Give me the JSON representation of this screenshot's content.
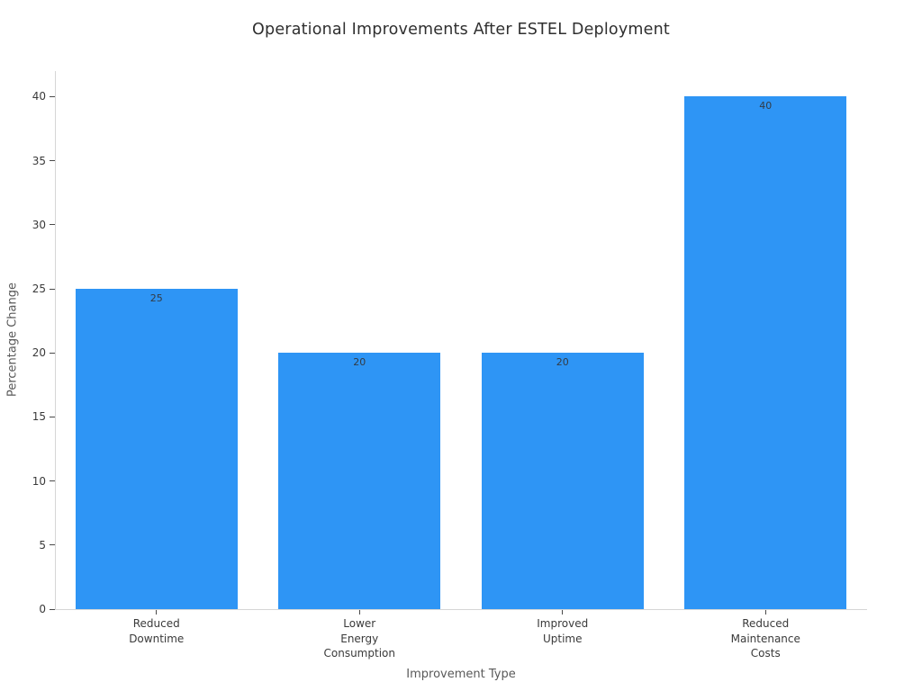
{
  "chart_data": {
    "type": "bar",
    "title": "Operational Improvements After ESTEL Deployment",
    "xlabel": "Improvement Type",
    "ylabel": "Percentage Change",
    "categories": [
      "Reduced Downtime",
      "Lower Energy Consumption",
      "Improved Uptime",
      "Reduced Maintenance Costs"
    ],
    "category_lines": [
      [
        "Reduced",
        "Downtime"
      ],
      [
        "Lower",
        "Energy",
        "Consumption"
      ],
      [
        "Improved",
        "Uptime"
      ],
      [
        "Reduced",
        "Maintenance",
        "Costs"
      ]
    ],
    "values": [
      25,
      20,
      20,
      40
    ],
    "bar_value_labels": [
      "25",
      "20",
      "20",
      "40"
    ],
    "yticks": [
      0,
      5,
      10,
      15,
      20,
      25,
      30,
      35,
      40
    ],
    "ylim": [
      0,
      42
    ],
    "bar_color": "#2E95F5",
    "background_color": "#FFFFFF",
    "grid": false,
    "legend": false
  }
}
